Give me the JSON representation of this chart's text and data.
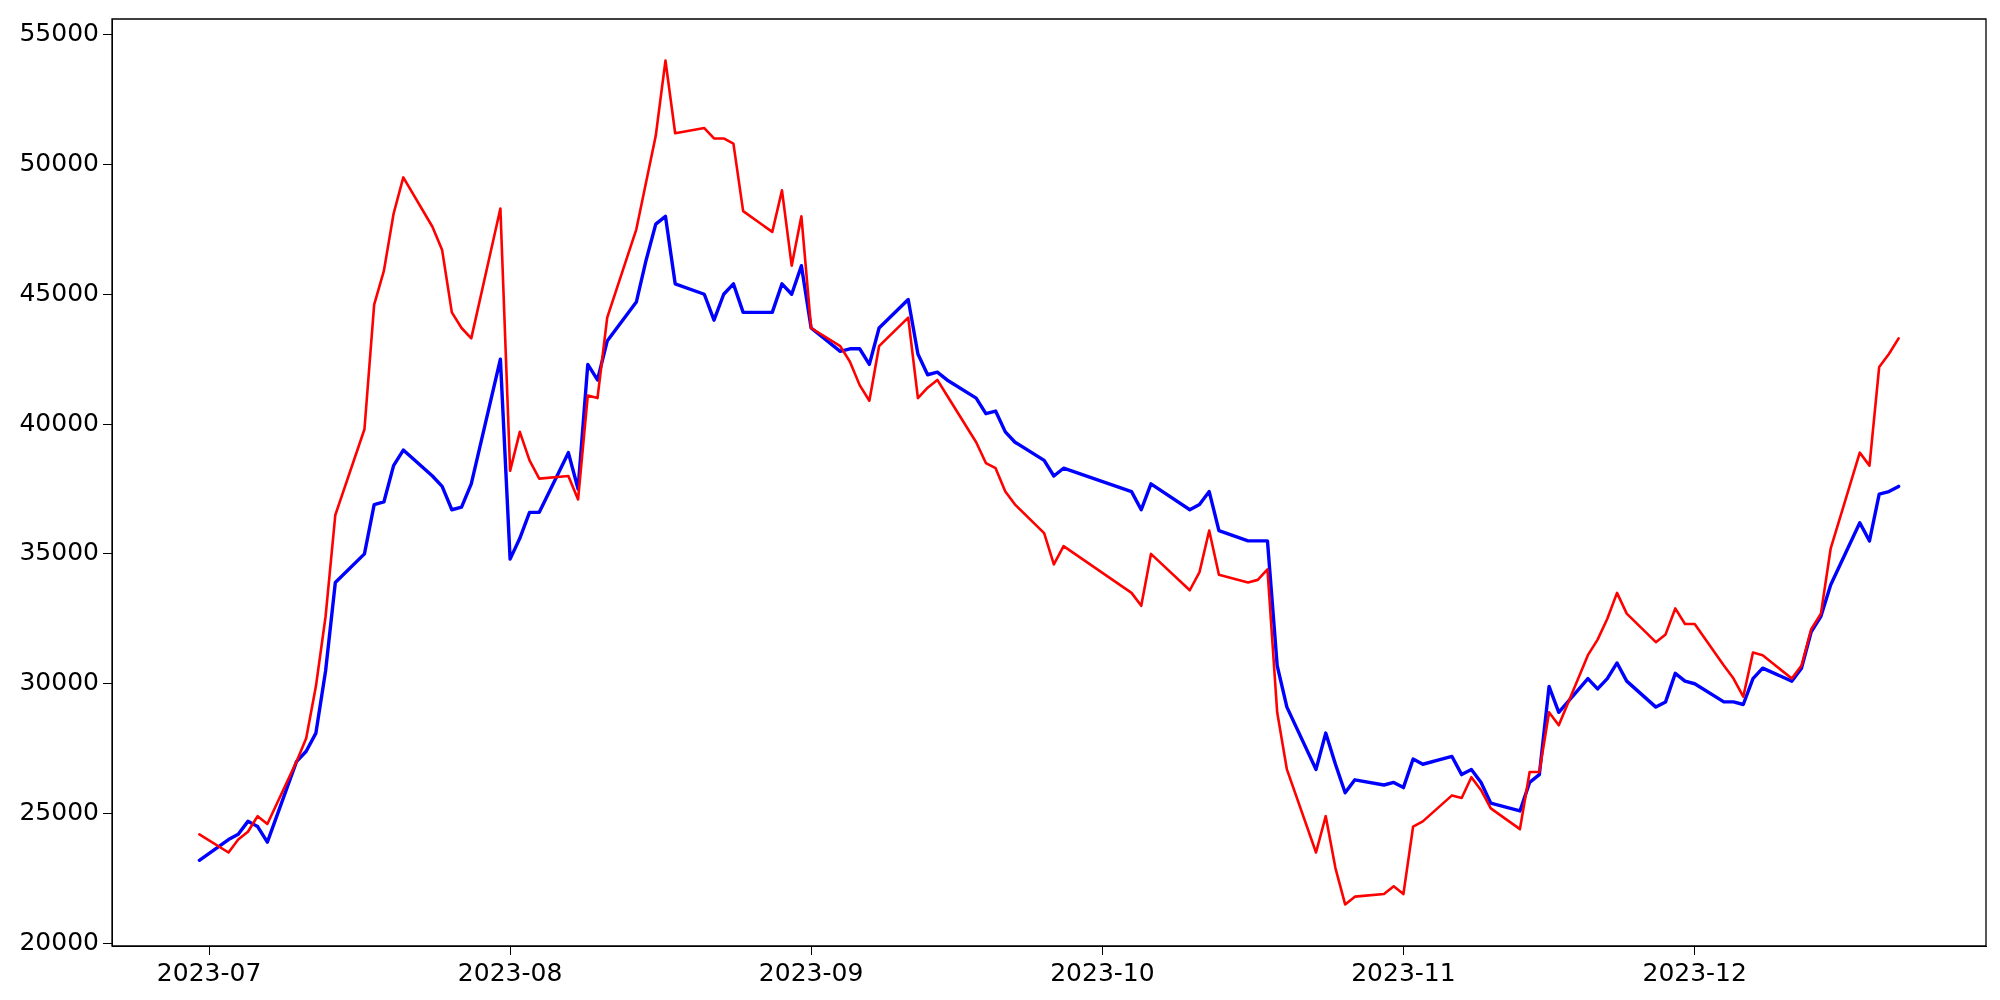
{
  "chart_data": {
    "type": "line",
    "x": [
      "2023-06-30",
      "2023-07-03",
      "2023-07-04",
      "2023-07-05",
      "2023-07-06",
      "2023-07-07",
      "2023-07-10",
      "2023-07-11",
      "2023-07-12",
      "2023-07-13",
      "2023-07-14",
      "2023-07-17",
      "2023-07-18",
      "2023-07-19",
      "2023-07-20",
      "2023-07-21",
      "2023-07-24",
      "2023-07-25",
      "2023-07-26",
      "2023-07-27",
      "2023-07-28",
      "2023-07-31",
      "2023-08-01",
      "2023-08-02",
      "2023-08-03",
      "2023-08-04",
      "2023-08-07",
      "2023-08-08",
      "2023-08-09",
      "2023-08-10",
      "2023-08-11",
      "2023-08-14",
      "2023-08-15",
      "2023-08-16",
      "2023-08-17",
      "2023-08-18",
      "2023-08-21",
      "2023-08-22",
      "2023-08-23",
      "2023-08-24",
      "2023-08-25",
      "2023-08-28",
      "2023-08-29",
      "2023-08-30",
      "2023-08-31",
      "2023-09-01",
      "2023-09-04",
      "2023-09-05",
      "2023-09-06",
      "2023-09-07",
      "2023-09-08",
      "2023-09-11",
      "2023-09-12",
      "2023-09-13",
      "2023-09-14",
      "2023-09-15",
      "2023-09-18",
      "2023-09-19",
      "2023-09-20",
      "2023-09-21",
      "2023-09-22",
      "2023-09-25",
      "2023-09-26",
      "2023-09-27",
      "2023-10-04",
      "2023-10-05",
      "2023-10-06",
      "2023-10-10",
      "2023-10-11",
      "2023-10-12",
      "2023-10-13",
      "2023-10-16",
      "2023-10-17",
      "2023-10-18",
      "2023-10-19",
      "2023-10-20",
      "2023-10-23",
      "2023-10-24",
      "2023-10-25",
      "2023-10-26",
      "2023-10-27",
      "2023-10-30",
      "2023-10-31",
      "2023-11-01",
      "2023-11-02",
      "2023-11-03",
      "2023-11-06",
      "2023-11-07",
      "2023-11-08",
      "2023-11-09",
      "2023-11-10",
      "2023-11-13",
      "2023-11-14",
      "2023-11-15",
      "2023-11-16",
      "2023-11-17",
      "2023-11-20",
      "2023-11-21",
      "2023-11-22",
      "2023-11-23",
      "2023-11-24",
      "2023-11-27",
      "2023-11-28",
      "2023-11-29",
      "2023-11-30",
      "2023-12-01",
      "2023-12-04",
      "2023-12-05",
      "2023-12-06",
      "2023-12-07",
      "2023-12-08",
      "2023-12-11",
      "2023-12-12",
      "2023-12-13",
      "2023-12-14",
      "2023-12-15",
      "2023-12-18",
      "2023-12-19",
      "2023-12-20",
      "2023-12-21",
      "2023-12-22"
    ],
    "series": [
      {
        "color": "#ff0000",
        "values": [
          24200,
          23500,
          24000,
          24300,
          24900,
          24600,
          27000,
          27900,
          29900,
          32600,
          36500,
          39800,
          44600,
          45900,
          48100,
          49500,
          47600,
          46700,
          44300,
          43700,
          43300,
          48300,
          38200,
          39700,
          38600,
          37900,
          38000,
          37100,
          41100,
          41000,
          44100,
          47500,
          49300,
          51100,
          54000,
          51200,
          51400,
          51000,
          51000,
          50800,
          48200,
          47400,
          49000,
          46100,
          48000,
          43700,
          43000,
          42400,
          41500,
          40900,
          43000,
          44100,
          41000,
          41400,
          41700,
          41100,
          39300,
          38500,
          38300,
          37400,
          36900,
          35800,
          34600,
          35300,
          33500,
          33000,
          35000,
          33600,
          34300,
          35900,
          34200,
          33900,
          34000,
          34400,
          28900,
          26700,
          23500,
          24900,
          22900,
          21500,
          21800,
          21900,
          22200,
          21900,
          24500,
          24700,
          25700,
          25600,
          26400,
          25900,
          25200,
          24400,
          26600,
          26600,
          28900,
          28400,
          31100,
          31700,
          32500,
          33500,
          32700,
          31600,
          31900,
          32900,
          32300,
          32300,
          30700,
          30200,
          29500,
          31200,
          31100,
          30200,
          30700,
          32100,
          32700,
          35200,
          38900,
          38400,
          42200,
          42700,
          43300
        ]
      },
      {
        "color": "#0000ff",
        "values": [
          23200,
          24000,
          24200,
          24700,
          24500,
          23900,
          27000,
          27400,
          28100,
          30500,
          33900,
          35000,
          36900,
          37000,
          38400,
          39000,
          38000,
          37600,
          36700,
          36800,
          37700,
          42500,
          34800,
          35600,
          36600,
          36600,
          38900,
          37500,
          42300,
          41700,
          43200,
          44700,
          46300,
          47700,
          48000,
          45400,
          45000,
          44000,
          45000,
          45400,
          44300,
          44300,
          45400,
          45000,
          46100,
          43700,
          42800,
          42900,
          42900,
          42300,
          43700,
          44800,
          42700,
          41900,
          42000,
          41700,
          41000,
          40400,
          40500,
          39700,
          39300,
          38600,
          38000,
          38300,
          37400,
          36700,
          37700,
          36700,
          36900,
          37400,
          35900,
          35500,
          35500,
          35500,
          30700,
          29100,
          26700,
          28100,
          26900,
          25800,
          26300,
          26100,
          26200,
          26000,
          27100,
          26900,
          27200,
          26500,
          26700,
          26200,
          25400,
          25100,
          26200,
          26500,
          29900,
          28900,
          30200,
          29800,
          30200,
          30800,
          30100,
          29100,
          29300,
          30400,
          30100,
          30000,
          29300,
          29300,
          29200,
          30200,
          30600,
          30100,
          30600,
          32000,
          32600,
          33800,
          36200,
          35500,
          37300,
          37400,
          37600
        ]
      }
    ],
    "xlim": [
      "2023-06-21",
      "2023-12-31"
    ],
    "xticks": [
      "2023-07",
      "2023-08",
      "2023-09",
      "2023-10",
      "2023-11",
      "2023-12"
    ],
    "ylim": [
      19900,
      55600
    ],
    "yticks": [
      20000,
      25000,
      30000,
      35000,
      40000,
      45000,
      50000,
      55000
    ],
    "legend": false,
    "grid": false,
    "marker": "none",
    "line_style": "solid"
  }
}
